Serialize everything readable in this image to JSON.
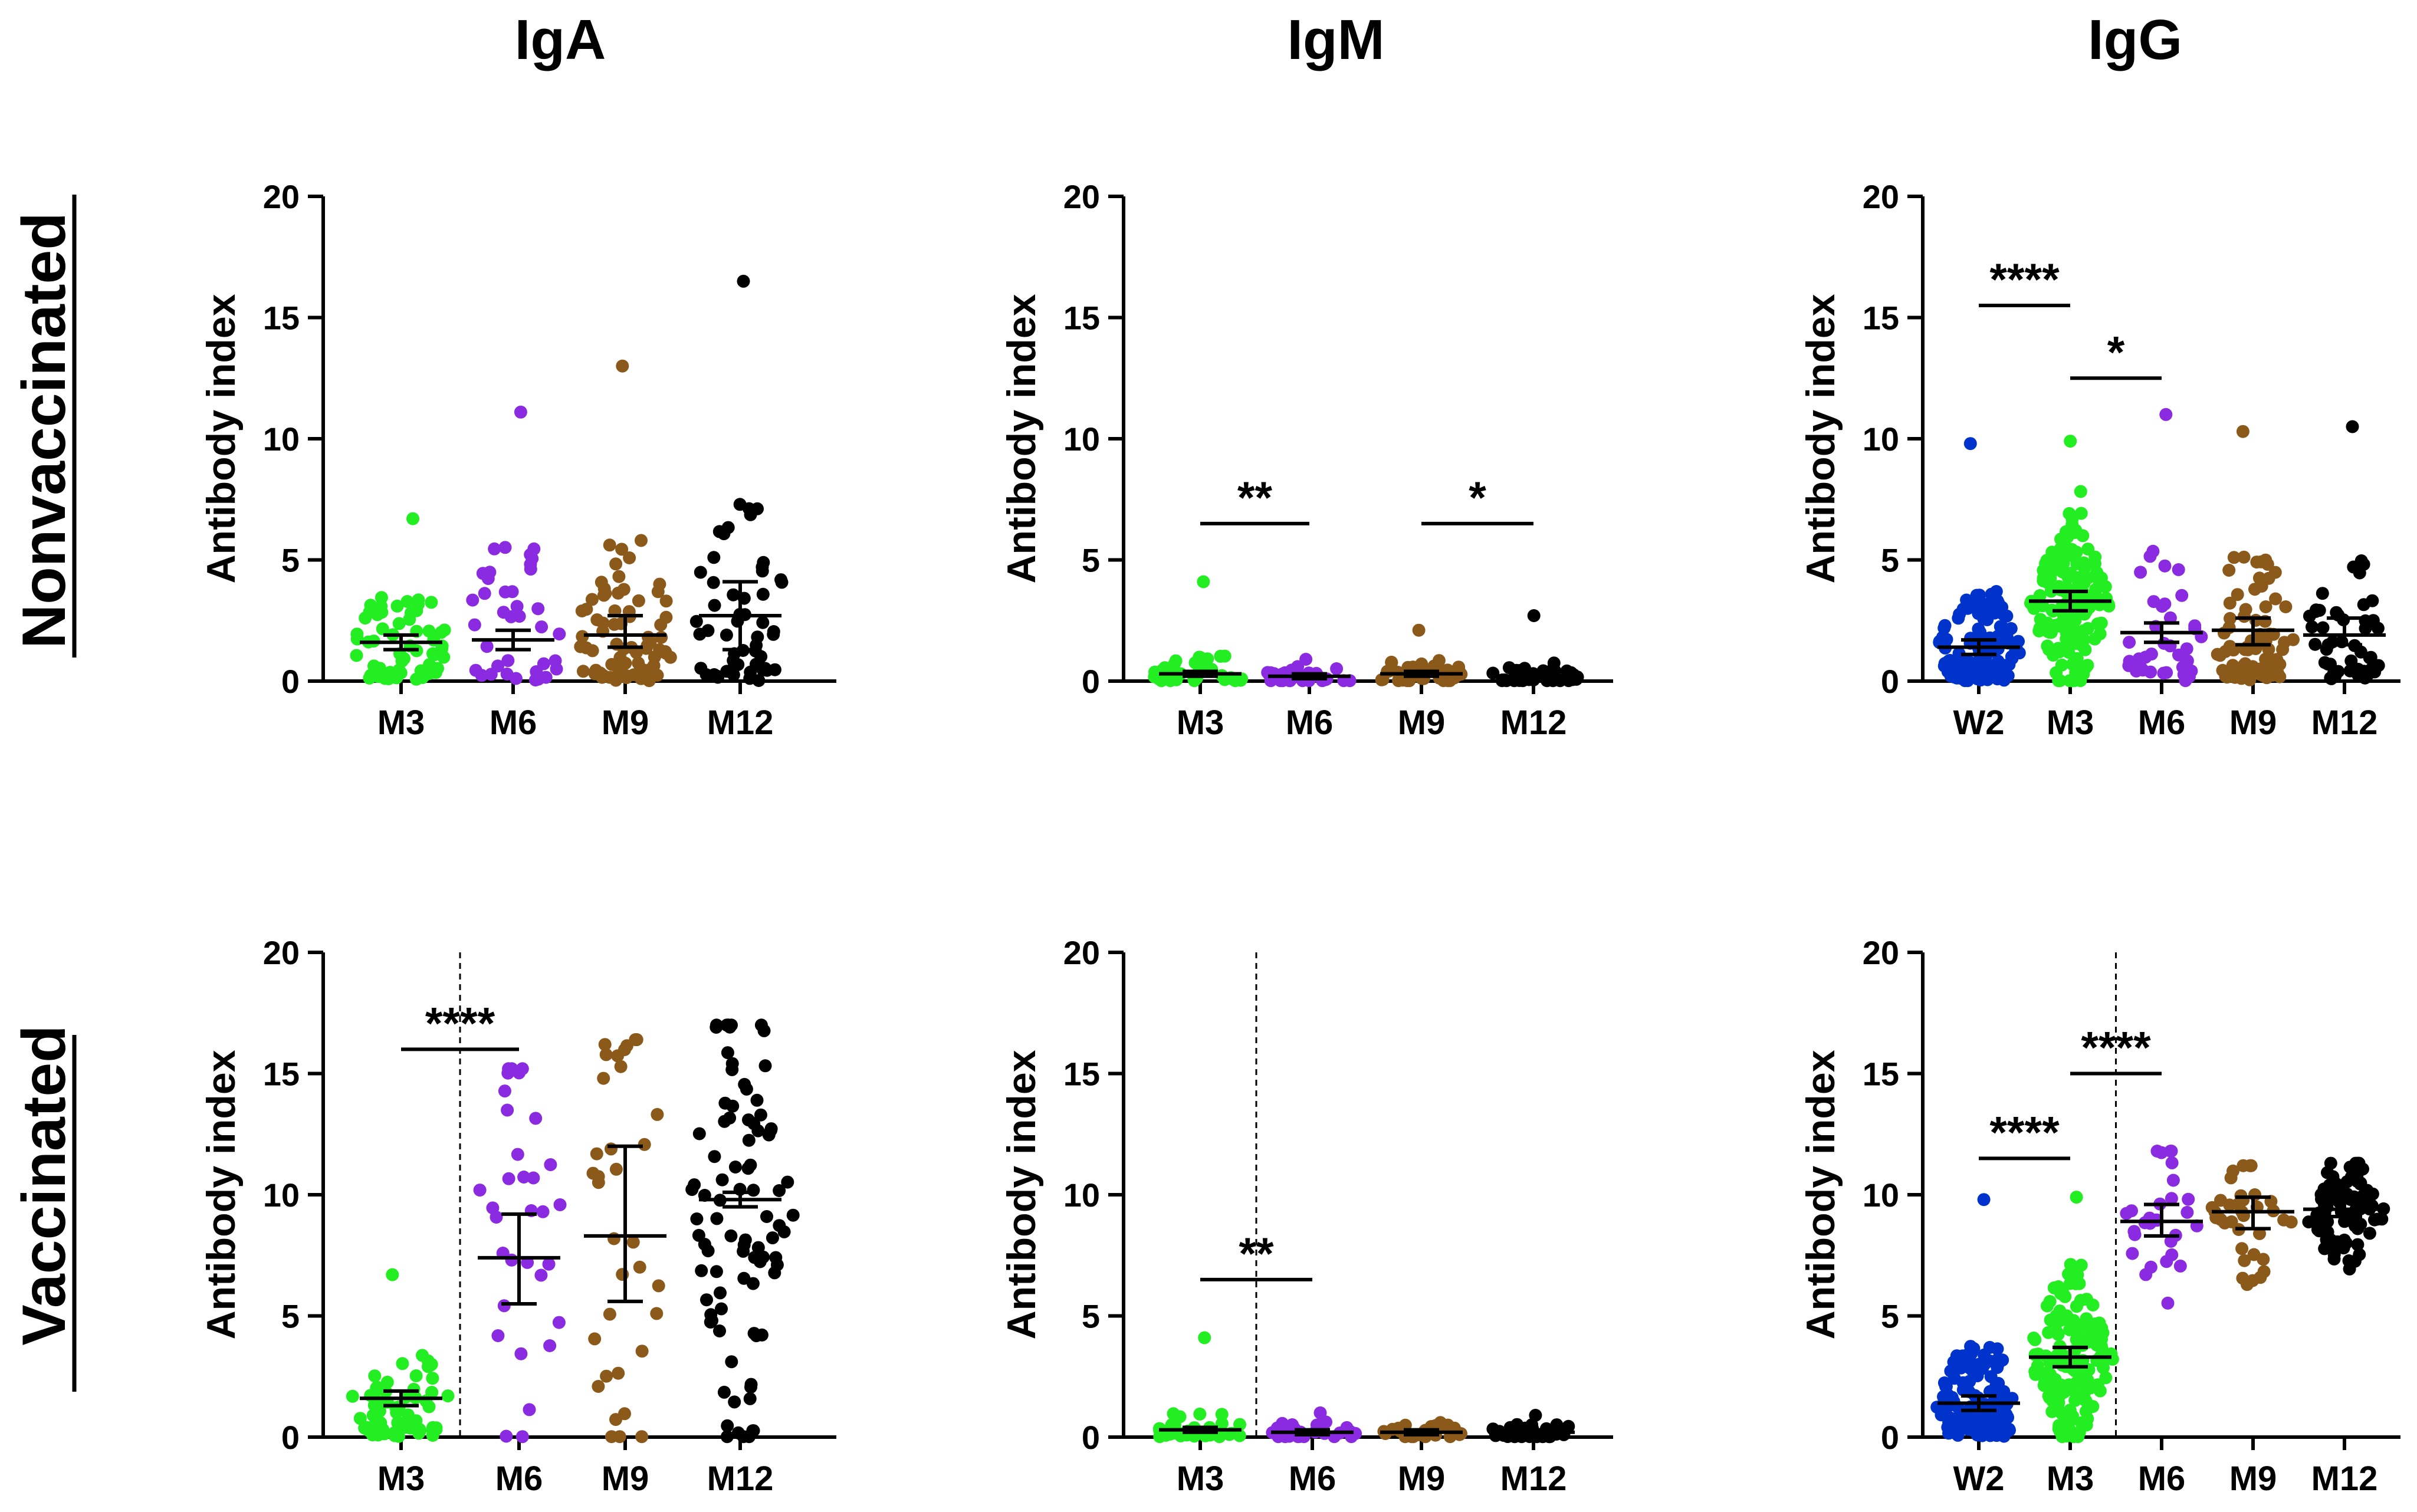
{
  "column_titles": [
    "IgA",
    "IgM",
    "IgG"
  ],
  "row_titles": [
    "Nonvaccinated",
    "Vaccinated"
  ],
  "colors": {
    "W2": "#0033cc",
    "M3": "#22ee22",
    "M6": "#8a2be2",
    "M9": "#8b5a1b",
    "M12": "#000000"
  },
  "chart_data": [
    {
      "id": "nonvacc-iga",
      "type": "scatter",
      "title": "",
      "ylabel": "Antibody index",
      "ylim": [
        0,
        20
      ],
      "yticks": [
        0,
        5,
        10,
        15,
        20
      ],
      "categories": [
        "M3",
        "M6",
        "M9",
        "M12"
      ],
      "groups": [
        {
          "name": "M3",
          "n": 70,
          "mean": 1.6,
          "ci": [
            1.3,
            1.9
          ],
          "max": 6.7,
          "spread": 3.2
        },
        {
          "name": "M6",
          "n": 38,
          "mean": 1.7,
          "ci": [
            1.3,
            2.1
          ],
          "max": 11.1,
          "spread": 5.5
        },
        {
          "name": "M9",
          "n": 85,
          "mean": 1.9,
          "ci": [
            1.4,
            2.7
          ],
          "max": 13.0,
          "spread": 5.5
        },
        {
          "name": "M12",
          "n": 55,
          "mean": 2.7,
          "ci": [
            1.3,
            4.1
          ],
          "max": 16.5,
          "spread": 7.0
        }
      ],
      "brackets": [],
      "divider_after": null
    },
    {
      "id": "nonvacc-igm",
      "type": "scatter",
      "title": "",
      "ylabel": "Antibody index",
      "ylim": [
        0,
        20
      ],
      "yticks": [
        0,
        5,
        10,
        15,
        20
      ],
      "categories": [
        "M3",
        "M6",
        "M9",
        "M12"
      ],
      "groups": [
        {
          "name": "M3",
          "n": 35,
          "mean": 0.3,
          "ci": [
            0.2,
            0.4
          ],
          "max": 4.1,
          "spread": 1.0
        },
        {
          "name": "M6",
          "n": 30,
          "mean": 0.2,
          "ci": [
            0.1,
            0.3
          ],
          "max": 0.9,
          "spread": 0.5
        },
        {
          "name": "M9",
          "n": 45,
          "mean": 0.3,
          "ci": [
            0.2,
            0.4
          ],
          "max": 2.1,
          "spread": 0.7
        },
        {
          "name": "M12",
          "n": 40,
          "mean": 0.2,
          "ci": [
            0.1,
            0.3
          ],
          "max": 2.7,
          "spread": 0.5
        }
      ],
      "brackets": [
        {
          "from": 0,
          "to": 1,
          "y": 6.5,
          "label": "**"
        },
        {
          "from": 2,
          "to": 3,
          "y": 6.5,
          "label": "*"
        }
      ],
      "divider_after": null
    },
    {
      "id": "nonvacc-igg",
      "type": "scatter",
      "title": "",
      "ylabel": "Antibody index",
      "ylim": [
        0,
        20
      ],
      "yticks": [
        0,
        5,
        10,
        15,
        20
      ],
      "categories": [
        "W2",
        "M3",
        "M6",
        "M9",
        "M12"
      ],
      "groups": [
        {
          "name": "W2",
          "n": 150,
          "mean": 1.4,
          "ci": [
            1.1,
            1.7
          ],
          "max": 9.8,
          "spread": 3.5
        },
        {
          "name": "M3",
          "n": 160,
          "mean": 3.3,
          "ci": [
            2.9,
            3.7
          ],
          "max": 9.9,
          "spread": 4.0
        },
        {
          "name": "M6",
          "n": 40,
          "mean": 2.0,
          "ci": [
            1.6,
            2.4
          ],
          "max": 11.0,
          "spread": 5.0
        },
        {
          "name": "M9",
          "n": 85,
          "mean": 2.1,
          "ci": [
            1.5,
            2.6
          ],
          "max": 10.3,
          "spread": 5.0
        },
        {
          "name": "M12",
          "n": 55,
          "mean": 1.9,
          "ci": [
            1.5,
            2.6
          ],
          "max": 10.5,
          "spread": 5.0
        }
      ],
      "brackets": [
        {
          "from": 0,
          "to": 1,
          "y": 15.5,
          "label": "****"
        },
        {
          "from": 1,
          "to": 2,
          "y": 12.5,
          "label": "*"
        }
      ],
      "divider_after": null
    },
    {
      "id": "vacc-iga",
      "type": "scatter",
      "title": "",
      "ylabel": "Antibody index",
      "ylim": [
        0,
        20
      ],
      "yticks": [
        0,
        5,
        10,
        15,
        20
      ],
      "categories": [
        "M3",
        "M6",
        "M9",
        "M12"
      ],
      "groups": [
        {
          "name": "M3",
          "n": 70,
          "mean": 1.6,
          "ci": [
            1.3,
            1.9
          ],
          "max": 6.7,
          "spread": 3.2
        },
        {
          "name": "M6",
          "n": 32,
          "mean": 7.4,
          "ci": [
            5.5,
            9.2
          ],
          "max": 15.2,
          "spread": 10.0
        },
        {
          "name": "M9",
          "n": 35,
          "mean": 8.3,
          "ci": [
            5.6,
            12.0
          ],
          "max": 16.4,
          "spread": 12.0
        },
        {
          "name": "M12",
          "n": 90,
          "mean": 9.8,
          "ci": [
            9.5,
            10.1
          ],
          "max": 17.0,
          "spread": 12.0
        }
      ],
      "brackets": [
        {
          "from": 0,
          "to": 1,
          "y": 16.0,
          "label": "****"
        }
      ],
      "divider_after": 0
    },
    {
      "id": "vacc-igm",
      "type": "scatter",
      "title": "",
      "ylabel": "Antibody index",
      "ylim": [
        0,
        20
      ],
      "yticks": [
        0,
        5,
        10,
        15,
        20
      ],
      "categories": [
        "M3",
        "M6",
        "M9",
        "M12"
      ],
      "groups": [
        {
          "name": "M3",
          "n": 35,
          "mean": 0.3,
          "ci": [
            0.2,
            0.4
          ],
          "max": 4.1,
          "spread": 1.0
        },
        {
          "name": "M6",
          "n": 30,
          "mean": 0.2,
          "ci": [
            0.1,
            0.3
          ],
          "max": 1.0,
          "spread": 0.5
        },
        {
          "name": "M9",
          "n": 30,
          "mean": 0.2,
          "ci": [
            0.1,
            0.3
          ],
          "max": 0.6,
          "spread": 0.4
        },
        {
          "name": "M12",
          "n": 35,
          "mean": 0.2,
          "ci": [
            0.1,
            0.3
          ],
          "max": 0.9,
          "spread": 0.4
        }
      ],
      "brackets": [
        {
          "from": 0,
          "to": 1,
          "y": 6.5,
          "label": "**"
        }
      ],
      "divider_after": 0
    },
    {
      "id": "vacc-igg",
      "type": "scatter",
      "title": "",
      "ylabel": "Antibody index",
      "ylim": [
        0,
        20
      ],
      "yticks": [
        0,
        5,
        10,
        15,
        20
      ],
      "categories": [
        "W2",
        "M3",
        "M6",
        "M9",
        "M12"
      ],
      "groups": [
        {
          "name": "W2",
          "n": 150,
          "mean": 1.4,
          "ci": [
            1.1,
            1.7
          ],
          "max": 9.8,
          "spread": 3.5
        },
        {
          "name": "M3",
          "n": 160,
          "mean": 3.3,
          "ci": [
            2.9,
            3.7
          ],
          "max": 9.9,
          "spread": 4.0
        },
        {
          "name": "M6",
          "n": 30,
          "mean": 8.9,
          "ci": [
            8.3,
            9.6
          ],
          "max": 11.8,
          "spread": 3.5
        },
        {
          "name": "M9",
          "n": 35,
          "mean": 9.3,
          "ci": [
            8.6,
            9.9
          ],
          "max": 11.2,
          "spread": 3.0
        },
        {
          "name": "M12",
          "n": 95,
          "mean": 9.4,
          "ci": [
            9.1,
            9.7
          ],
          "max": 11.3,
          "spread": 2.5
        }
      ],
      "brackets": [
        {
          "from": 0,
          "to": 1,
          "y": 11.5,
          "label": "****"
        },
        {
          "from": 1,
          "to": 2,
          "y": 15.0,
          "label": "****"
        }
      ],
      "divider_after": 1
    }
  ]
}
